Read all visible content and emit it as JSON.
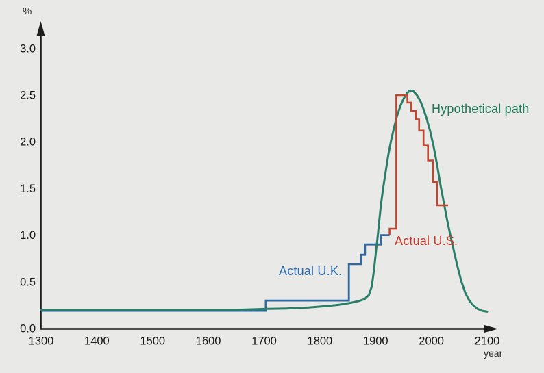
{
  "figure": {
    "background": "#e9e9e7",
    "axis_color": "#1c1c1c",
    "tick_color": "#161616",
    "percent_label": "%",
    "year_label": "year"
  },
  "chart_data": {
    "type": "line",
    "title": "",
    "xlabel": "year",
    "ylabel": "%",
    "xlim": [
      1300,
      2110
    ],
    "ylim": [
      0.0,
      3.2
    ],
    "grid": false,
    "legend_position": "inline-annotations",
    "x_ticks": [
      1300,
      1400,
      1500,
      1600,
      1700,
      1800,
      1900,
      2000,
      2100
    ],
    "y_ticks": [
      {
        "label": "3.0",
        "value": 3.0
      },
      {
        "label": "2.5",
        "value": 2.5
      },
      {
        "label": "2.0",
        "value": 2.0
      },
      {
        "label": "1.5",
        "value": 1.5
      },
      {
        "label": "1.0",
        "value": 1.0
      },
      {
        "label": "0.5",
        "value": 0.5
      },
      {
        "label": "0.0",
        "value": 0.0
      }
    ],
    "series": [
      {
        "name": "Actual U.K.",
        "style": "step",
        "color": "#30699f",
        "label_color": "#2c6cae",
        "start_year": 1300,
        "start_value": 0.19,
        "end_year": 1925,
        "steps": [
          [
            1703,
            0.3
          ],
          [
            1852,
            0.69
          ],
          [
            1874,
            0.79
          ],
          [
            1881,
            0.9
          ],
          [
            1909,
            1.0
          ]
        ]
      },
      {
        "name": "Actual U.S.",
        "style": "step",
        "color": "#c4452e",
        "label_color": "#c4372a",
        "start_year": 1925,
        "start_value": 1.0,
        "end_year": 2030,
        "steps": [
          [
            1925,
            1.07
          ],
          [
            1937,
            2.5
          ],
          [
            1957,
            2.42
          ],
          [
            1964,
            2.33
          ],
          [
            1972,
            2.24
          ],
          [
            1978,
            2.12
          ],
          [
            1986,
            1.96
          ],
          [
            1994,
            1.8
          ],
          [
            2003,
            1.57
          ],
          [
            2010,
            1.32
          ]
        ]
      },
      {
        "name": "Hypothetical path",
        "style": "smooth",
        "color": "#2a7e68",
        "label_color": "#1e7a5c",
        "points": [
          [
            1300,
            0.2
          ],
          [
            1500,
            0.2
          ],
          [
            1650,
            0.2
          ],
          [
            1700,
            0.21
          ],
          [
            1740,
            0.215
          ],
          [
            1780,
            0.225
          ],
          [
            1810,
            0.24
          ],
          [
            1835,
            0.255
          ],
          [
            1855,
            0.275
          ],
          [
            1870,
            0.295
          ],
          [
            1880,
            0.315
          ],
          [
            1888,
            0.36
          ],
          [
            1893,
            0.45
          ],
          [
            1897,
            0.62
          ],
          [
            1901,
            0.85
          ],
          [
            1904,
            1.0
          ],
          [
            1907,
            1.18
          ],
          [
            1910,
            1.35
          ],
          [
            1914,
            1.52
          ],
          [
            1918,
            1.68
          ],
          [
            1923,
            1.87
          ],
          [
            1928,
            2.02
          ],
          [
            1933,
            2.15
          ],
          [
            1938,
            2.27
          ],
          [
            1944,
            2.38
          ],
          [
            1950,
            2.46
          ],
          [
            1956,
            2.52
          ],
          [
            1962,
            2.55
          ],
          [
            1968,
            2.54
          ],
          [
            1974,
            2.5
          ],
          [
            1980,
            2.44
          ],
          [
            1986,
            2.35
          ],
          [
            1992,
            2.24
          ],
          [
            1998,
            2.11
          ],
          [
            2004,
            1.95
          ],
          [
            2010,
            1.76
          ],
          [
            2016,
            1.55
          ],
          [
            2022,
            1.36
          ],
          [
            2028,
            1.17
          ],
          [
            2034,
            1.0
          ],
          [
            2040,
            0.84
          ],
          [
            2047,
            0.66
          ],
          [
            2054,
            0.5
          ],
          [
            2061,
            0.38
          ],
          [
            2068,
            0.3
          ],
          [
            2075,
            0.25
          ],
          [
            2083,
            0.21
          ],
          [
            2091,
            0.19
          ],
          [
            2100,
            0.18
          ]
        ]
      }
    ]
  }
}
